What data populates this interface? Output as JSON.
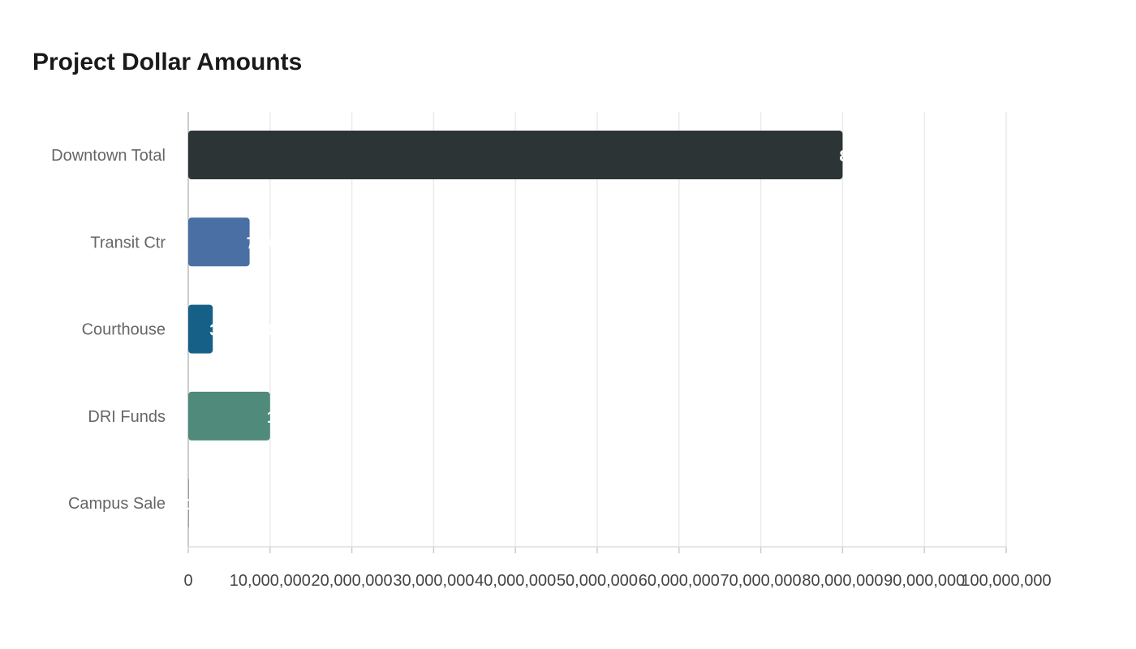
{
  "chart_data": {
    "type": "bar",
    "orientation": "horizontal",
    "title": "Project Dollar Amounts",
    "categories": [
      "Downtown Total",
      "Transit Ctr",
      "Courthouse",
      "DRI Funds",
      "Campus Sale"
    ],
    "values": [
      80000000,
      7500000,
      3000000,
      10000000,
      100000
    ],
    "colors": [
      "#2d3436",
      "#4a6fa5",
      "#166088",
      "#4f8a7a",
      "#9e9e9e"
    ],
    "xlim": [
      0,
      100000000
    ],
    "xticks": [
      "0",
      "10,000,000",
      "20,000,000",
      "30,000,000",
      "40,000,000",
      "50,000,000",
      "60,000,000",
      "70,000,000",
      "80,000,000",
      "90,000,000",
      "100,000,000"
    ],
    "grid": true,
    "legend": "none"
  }
}
